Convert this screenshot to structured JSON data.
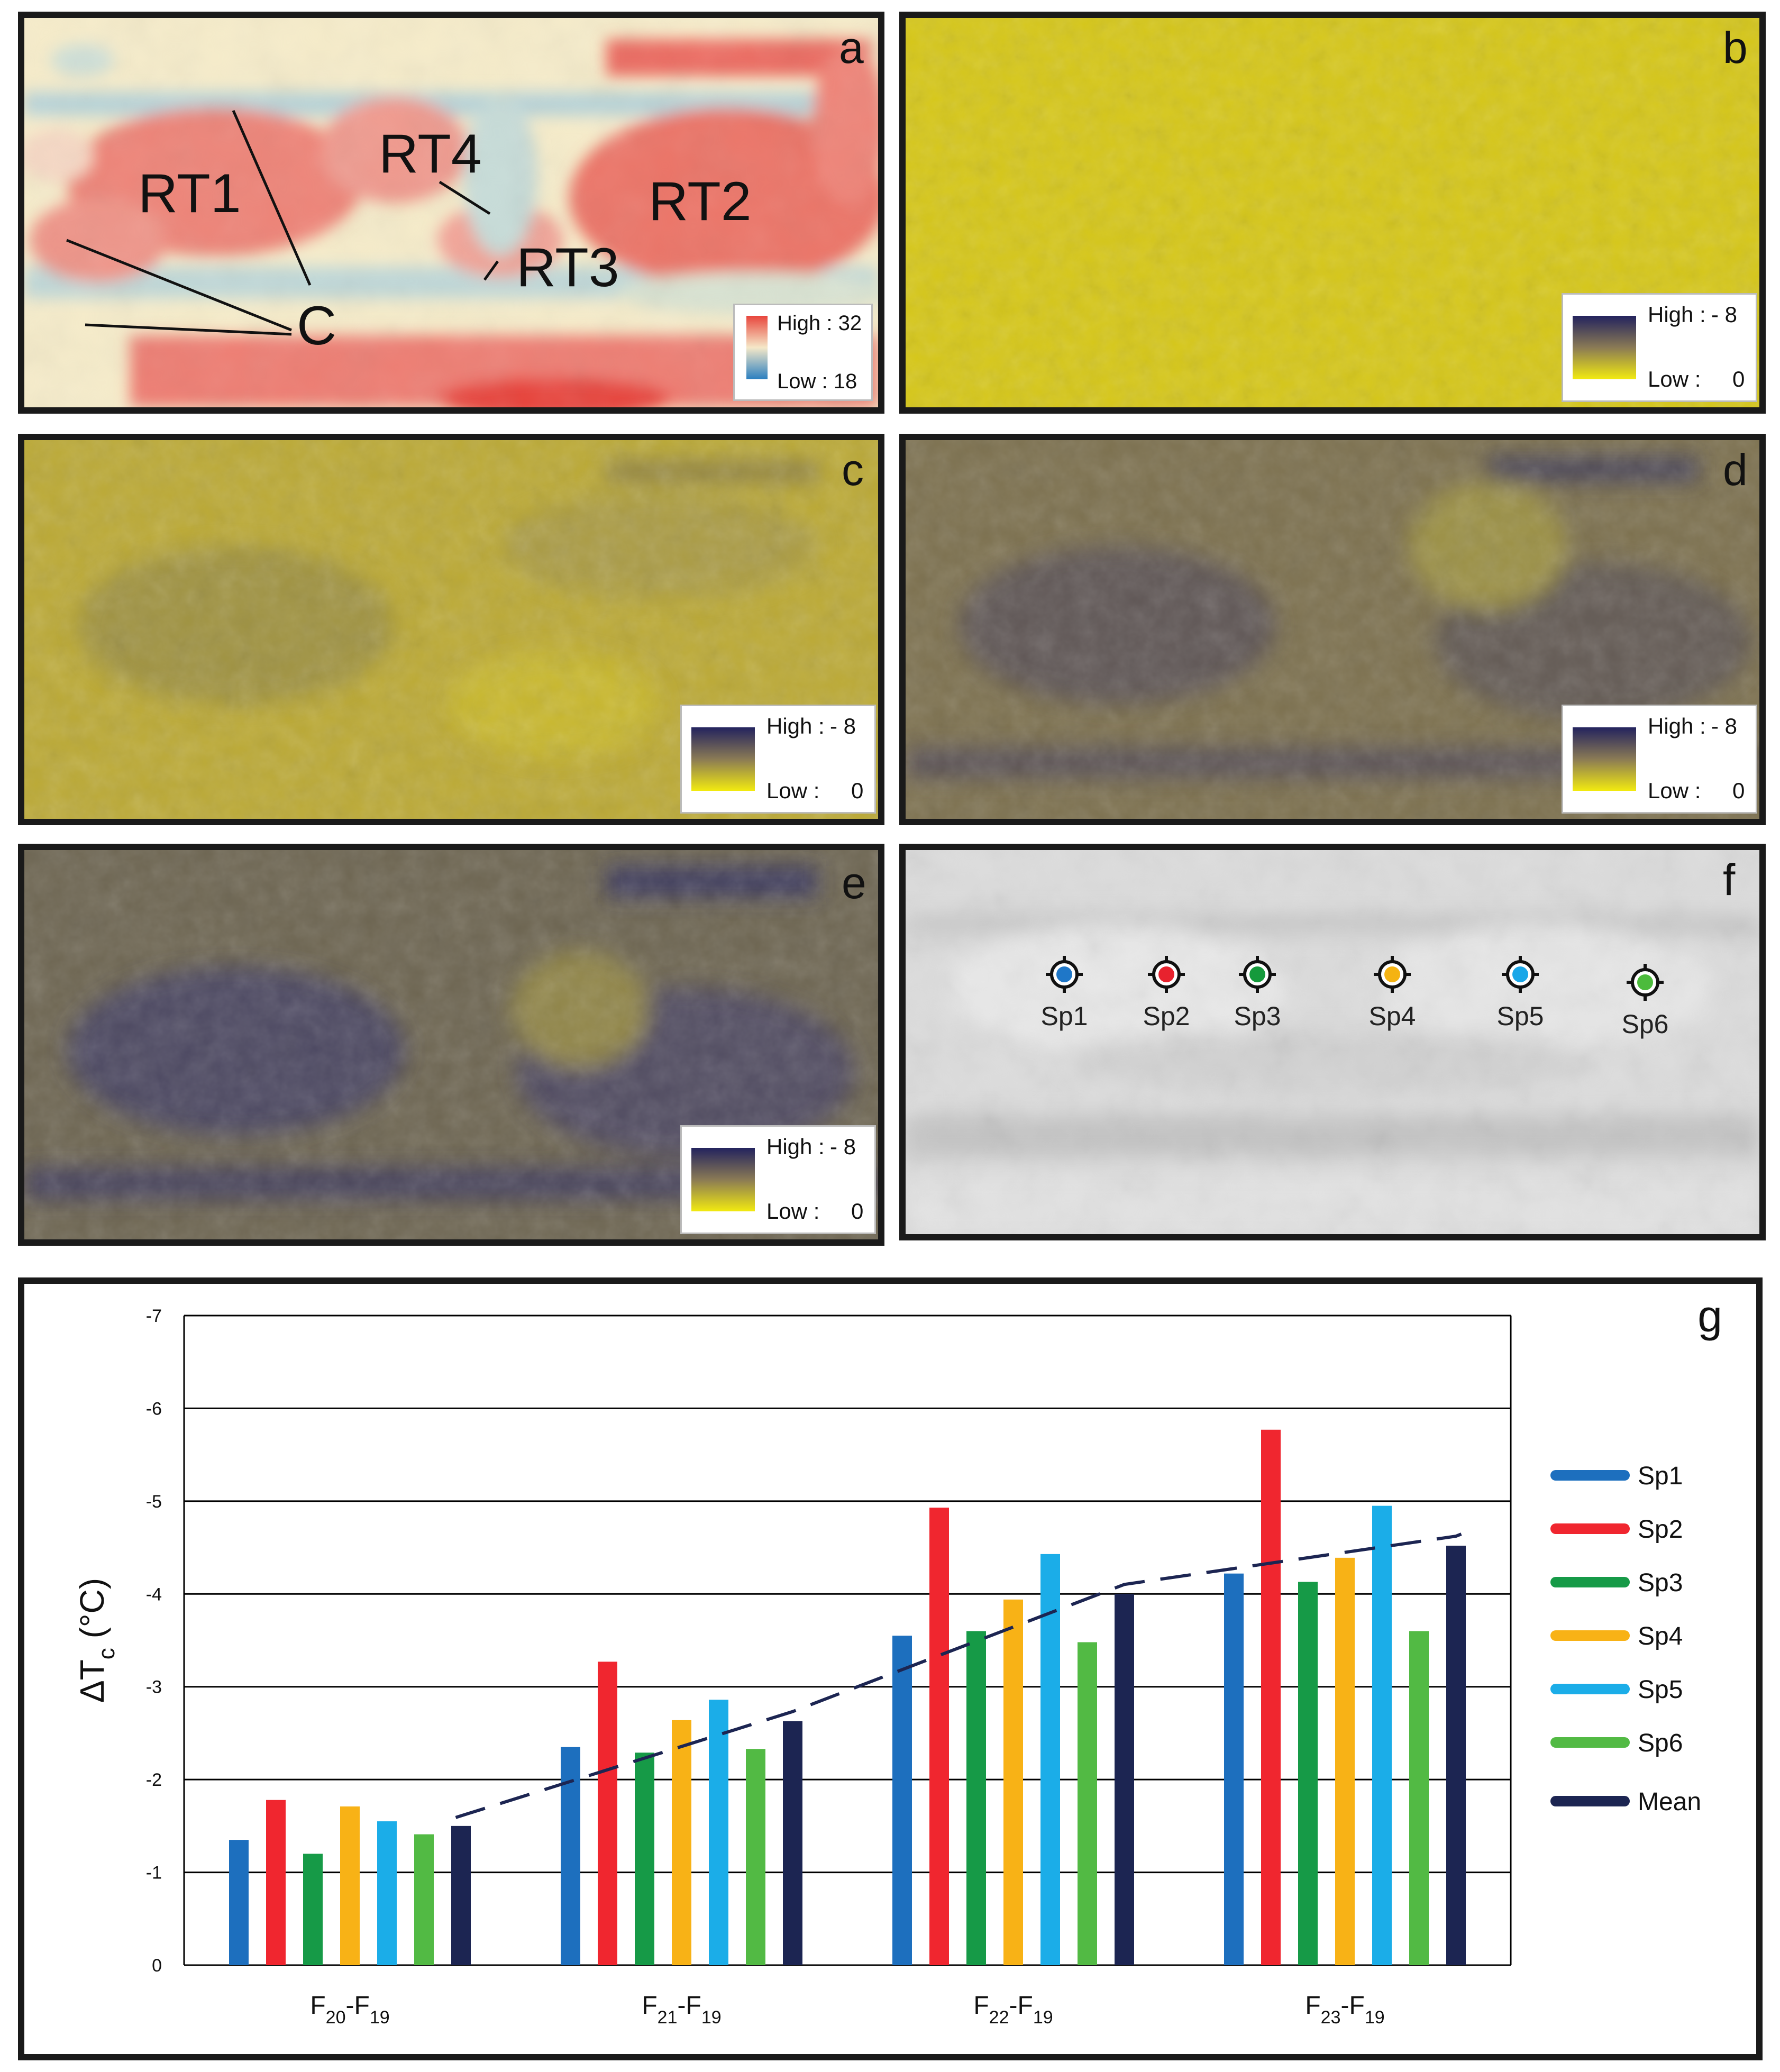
{
  "panels": {
    "a": {
      "label": "a",
      "legend": {
        "high": "High : 32",
        "low": "Low : 18",
        "colors": [
          "#e8453c",
          "#f5e8c8",
          "#2a7fc0"
        ]
      },
      "annotations": [
        "RT1",
        "RT4",
        "RT2",
        "RT3",
        "C"
      ]
    },
    "b": {
      "label": "b",
      "legend": {
        "high_label": "High :",
        "high_value": "- 8",
        "low_label": "Low :",
        "low_value": "0"
      }
    },
    "c": {
      "label": "c",
      "legend": {
        "high_label": "High :",
        "high_value": "- 8",
        "low_label": "Low :",
        "low_value": "0"
      }
    },
    "d": {
      "label": "d",
      "legend": {
        "high_label": "High :",
        "high_value": "- 8",
        "low_label": "Low :",
        "low_value": "0"
      }
    },
    "e": {
      "label": "e",
      "legend": {
        "high_label": "High :",
        "high_value": "- 8",
        "low_label": "Low :",
        "low_value": "0"
      }
    },
    "f": {
      "label": "f",
      "spots": [
        {
          "name": "Sp1",
          "color": "#1f77c8"
        },
        {
          "name": "Sp2",
          "color": "#e8222e"
        },
        {
          "name": "Sp3",
          "color": "#159a3c"
        },
        {
          "name": "Sp4",
          "color": "#f5b312"
        },
        {
          "name": "Sp5",
          "color": "#1aa7e8"
        },
        {
          "name": "Sp6",
          "color": "#4cbb3c"
        }
      ]
    }
  },
  "ramp_colors": {
    "high": "#23235e",
    "mid": "#8a7a55",
    "low": "#f2ea10"
  },
  "chart_data": {
    "type": "bar",
    "panel_label": "g",
    "ylabel_main": "ΔT",
    "ylabel_sub": "c",
    "ylabel_unit": "(°C)",
    "ylim": [
      0,
      -7
    ],
    "yticks": [
      "0",
      "-1",
      "-2",
      "-3",
      "-4",
      "-5",
      "-6",
      "-7"
    ],
    "grid": true,
    "legend_position": "right",
    "categories": [
      {
        "main": "F",
        "sub1": "20",
        "mid": "-F",
        "sub2": "19"
      },
      {
        "main": "F",
        "sub1": "21",
        "mid": "-F",
        "sub2": "19"
      },
      {
        "main": "F",
        "sub1": "22",
        "mid": "-F",
        "sub2": "19"
      },
      {
        "main": "F",
        "sub1": "23",
        "mid": "-F",
        "sub2": "19"
      }
    ],
    "series": [
      {
        "name": "Sp1",
        "color": "#1d6fbe",
        "values": [
          -1.35,
          -2.35,
          -3.55,
          -4.22
        ]
      },
      {
        "name": "Sp2",
        "color": "#f0262f",
        "values": [
          -1.78,
          -3.27,
          -4.93,
          -5.77
        ]
      },
      {
        "name": "Sp3",
        "color": "#169a47",
        "values": [
          -1.2,
          -2.29,
          -3.6,
          -4.13
        ]
      },
      {
        "name": "Sp4",
        "color": "#f8b216",
        "values": [
          -1.71,
          -2.64,
          -3.94,
          -4.39
        ]
      },
      {
        "name": "Sp5",
        "color": "#1bade8",
        "values": [
          -1.55,
          -2.86,
          -4.43,
          -4.95
        ]
      },
      {
        "name": "Sp6",
        "color": "#52ba44",
        "values": [
          -1.41,
          -2.33,
          -3.48,
          -3.6
        ]
      },
      {
        "name": "Mean",
        "color": "#1c2552",
        "values": [
          -1.5,
          -2.63,
          -4.0,
          -4.52
        ]
      }
    ],
    "trendline": {
      "style": "dashed",
      "color": "#1c2552"
    }
  }
}
